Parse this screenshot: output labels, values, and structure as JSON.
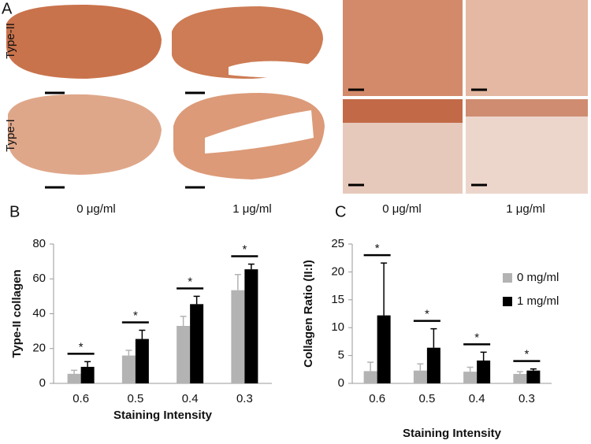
{
  "panel_a": {
    "label": "A",
    "rows": [
      "Type-II",
      "Type-I"
    ],
    "left_columns": [
      "0 μg/ml",
      "1 μg/ml"
    ],
    "right_columns": [
      "0 μg/ml",
      "1 μg/ml"
    ]
  },
  "chart_data": [
    {
      "type": "bar",
      "panel": "B",
      "ylabel": "Type-II collagen",
      "xlabel": "Staining Intensity",
      "categories": [
        "0.6",
        "0.5",
        "0.4",
        "0.3"
      ],
      "series": [
        {
          "color": "#b3b3b3",
          "values": [
            5.5,
            16,
            33,
            53.5
          ],
          "errors": [
            2,
            3,
            5.5,
            9
          ]
        },
        {
          "color": "#000000",
          "values": [
            9.5,
            25.5,
            45.5,
            65.5
          ],
          "errors": [
            3,
            5,
            4.5,
            3
          ]
        }
      ],
      "annotations": [
        "*",
        "*",
        "*",
        "*"
      ],
      "ylim": [
        0,
        80
      ],
      "yticks": [
        0,
        20,
        40,
        60,
        80
      ]
    },
    {
      "type": "bar",
      "panel": "C",
      "ylabel": "Collagen Ratio (II:I)",
      "xlabel": "Staining Intensity",
      "categories": [
        "0.6",
        "0.5",
        "0.4",
        "0.3"
      ],
      "series": [
        {
          "name": "0 mg/ml",
          "color": "#b3b3b3",
          "values": [
            2.2,
            2.3,
            2.1,
            1.7
          ],
          "errors": [
            1.6,
            1.2,
            0.8,
            0.4
          ]
        },
        {
          "name": "1 mg/ml",
          "color": "#000000",
          "values": [
            12.2,
            6.4,
            4.1,
            2.3
          ],
          "errors": [
            9.4,
            3.4,
            1.5,
            0.3
          ]
        }
      ],
      "annotations": [
        "*",
        "*",
        "*",
        "*"
      ],
      "ylim": [
        0,
        25
      ],
      "yticks": [
        0,
        5,
        10,
        15,
        20,
        25
      ],
      "legend": "upper right"
    }
  ]
}
